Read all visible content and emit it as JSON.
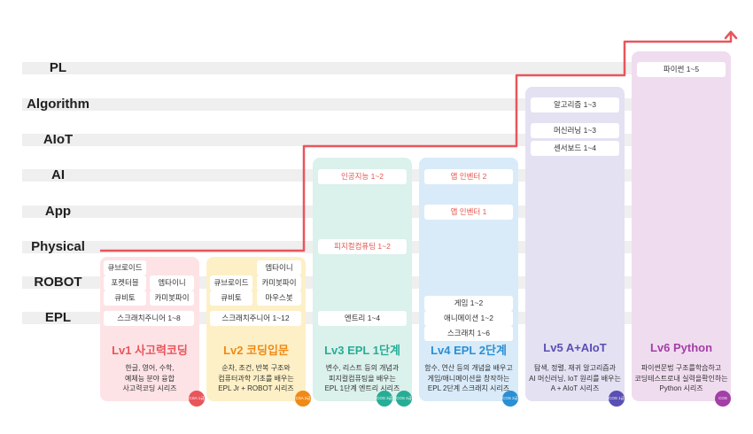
{
  "rows": [
    {
      "label": "PL"
    },
    {
      "label": "Algorithm"
    },
    {
      "label": "AIoT"
    },
    {
      "label": "AI"
    },
    {
      "label": "App"
    },
    {
      "label": "Physical"
    },
    {
      "label": "ROBOT"
    },
    {
      "label": "EPL"
    }
  ],
  "levels": [
    {
      "title": "Lv1 사고력코딩",
      "color": "#e8555b",
      "desc": [
        "한글, 영어, 수학,",
        "예체능 분야 융합",
        "사고력코딩 시리즈"
      ],
      "chips": [
        "큐브로이드",
        "포켓터블",
        "엠타이니",
        "큐비토",
        "카미봇파이",
        "스크래치주니어 1~8"
      ],
      "badge": "CSA 1급"
    },
    {
      "title": "Lv2 코딩입문",
      "color": "#ef8a18",
      "desc": [
        "순차, 조건, 반복 구조와",
        "컴퓨터과학 기초를 배우는",
        "EPL Jr + ROBOT 시리즈"
      ],
      "chips": [
        "엠타이니",
        "큐브로이드",
        "카미봇파이",
        "큐비토",
        "마우스봇",
        "스크래치주니어 1~12"
      ],
      "badge": "CSA 2급"
    },
    {
      "title": "Lv3 EPL 1단계",
      "color": "#27ad96",
      "desc": [
        "변수, 리스트 등의 개념과",
        "피지컬컴퓨팅을 배우는",
        "EPL 1단계 엔트리 시리즈"
      ],
      "chips": [
        "인공지능 1~2",
        "피지컬컴퓨팅 1~2",
        "엔트리 1~4"
      ],
      "badges": [
        "COS 3급",
        "COS 4급"
      ]
    },
    {
      "title": "Lv4 EPL 2단계",
      "color": "#2a8fd4",
      "desc": [
        "함수, 연산 등의 개념을 배우고",
        "게임/애니메이션을 창작하는",
        "EPL 2단계 스크래치 시리즈"
      ],
      "chips": [
        "앱 인벤터 2",
        "앱 인벤터 1",
        "게임 1~2",
        "애니메이션 1~2",
        "스크래치 1~6"
      ],
      "badge": "COS 2급"
    },
    {
      "title": "Lv5 A+AIoT",
      "color": "#5a4fb3",
      "desc": [
        "탐색, 정렬, 재귀 알고리즘과",
        "AI 머신러닝, IoT 원리를 배우는",
        "A + AIoT 시리즈"
      ],
      "chips": [
        "알고리즘 1~3",
        "머신러닝 1~3",
        "센서보드 1~4"
      ],
      "badge": "COS 1급"
    },
    {
      "title": "Lv6 Python",
      "color": "#a33fa6",
      "desc": [
        "파이썬문법 구조를학습하고",
        "코딩테스트로내 실력을확인하는",
        "Python 시리즈"
      ],
      "chips": [
        "파이썬 1~5"
      ],
      "badge": "COS PRO 1급"
    }
  ],
  "colors": {
    "path": "#e8555b",
    "band": "#efefef"
  }
}
